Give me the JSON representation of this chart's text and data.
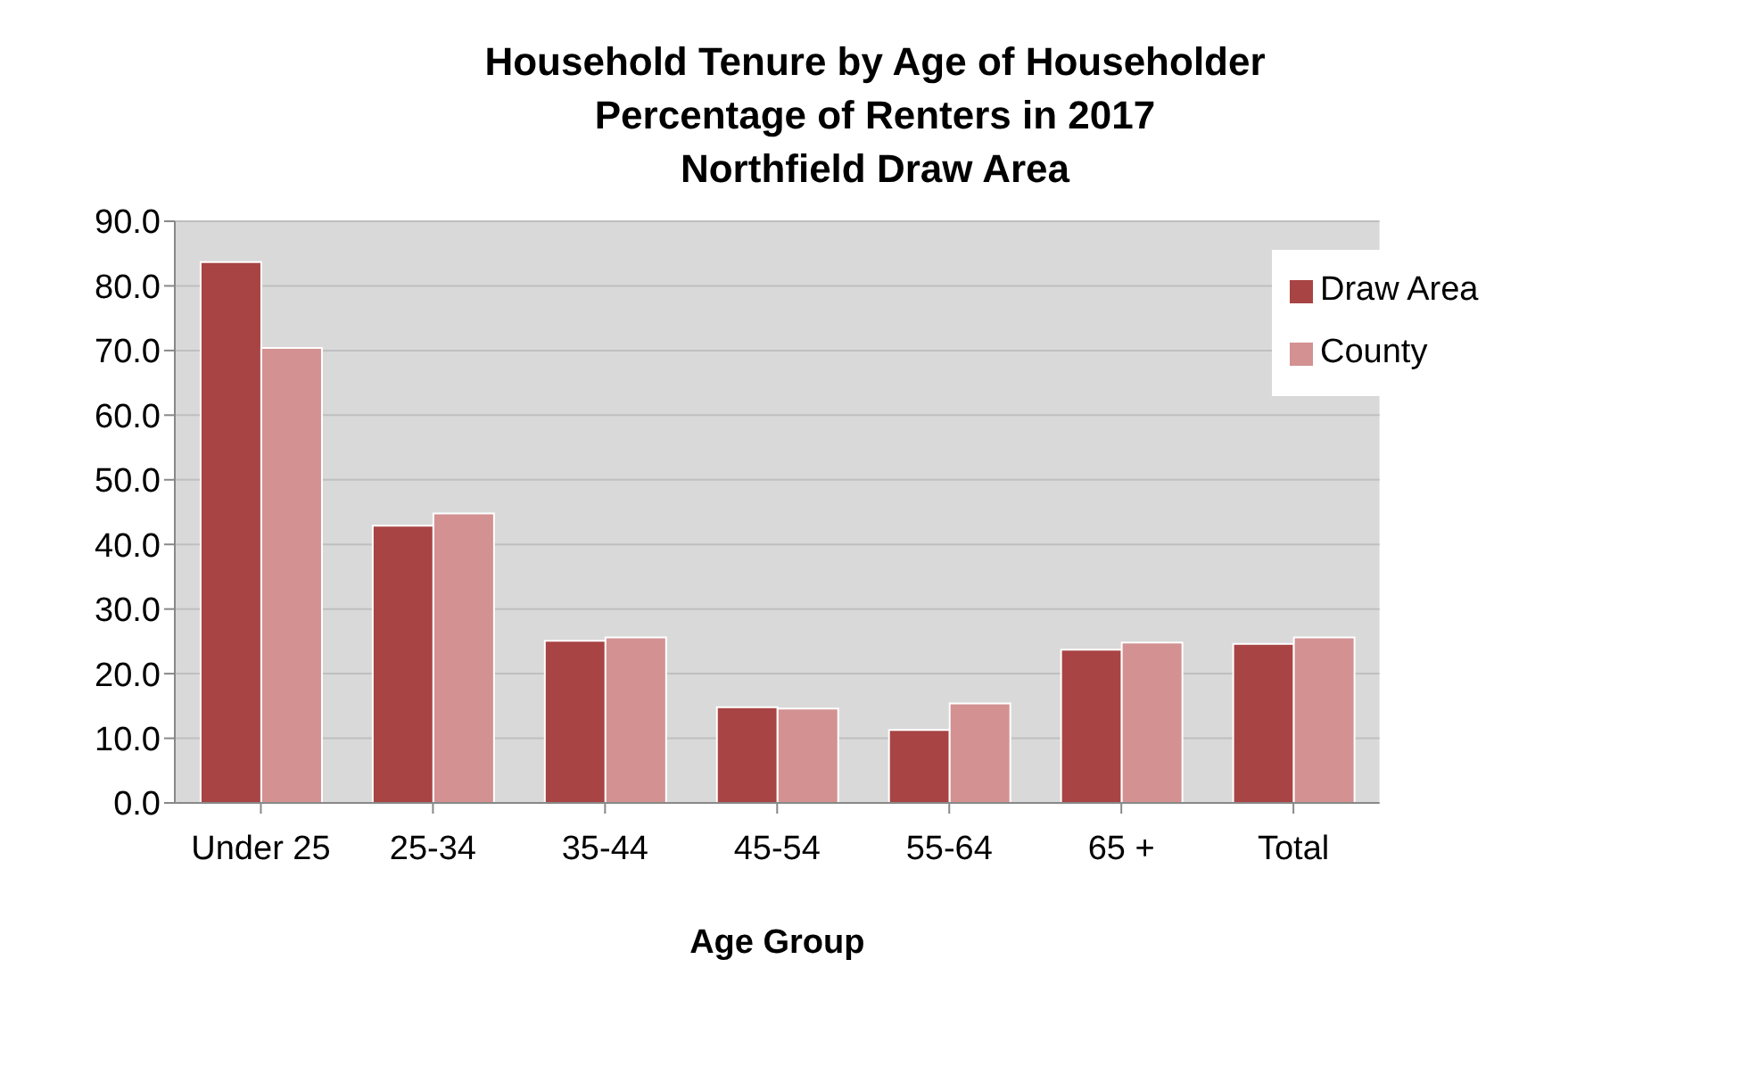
{
  "chart_data": {
    "type": "bar",
    "title": "Household Tenure by Age of Householder\nPercentage of Renters in 2017\nNorthfield Draw Area",
    "xlabel": "Age Group",
    "categories": [
      "Under 25",
      "25-34",
      "35-44",
      "45-54",
      "55-64",
      "65 +",
      "Total"
    ],
    "series": [
      {
        "name": "Draw Area",
        "color": "#a84444",
        "values": [
          83.7,
          42.9,
          25.1,
          14.8,
          11.3,
          23.7,
          24.6
        ]
      },
      {
        "name": "County",
        "color": "#d39191",
        "values": [
          70.4,
          44.8,
          25.6,
          14.6,
          15.4,
          24.8,
          25.6
        ]
      }
    ],
    "ylim": [
      0,
      90
    ],
    "yticks": [
      {
        "value": 0,
        "label": "0.0"
      },
      {
        "value": 10,
        "label": "10.0"
      },
      {
        "value": 20,
        "label": "20.0"
      },
      {
        "value": 30,
        "label": "30.0"
      },
      {
        "value": 40,
        "label": "40.0"
      },
      {
        "value": 50,
        "label": "50.0"
      },
      {
        "value": 60,
        "label": "60.0"
      },
      {
        "value": 70,
        "label": "70.0"
      },
      {
        "value": 80,
        "label": "80.0"
      },
      {
        "value": 90,
        "label": "90.0"
      }
    ],
    "grid": "y",
    "legend": "top right"
  }
}
